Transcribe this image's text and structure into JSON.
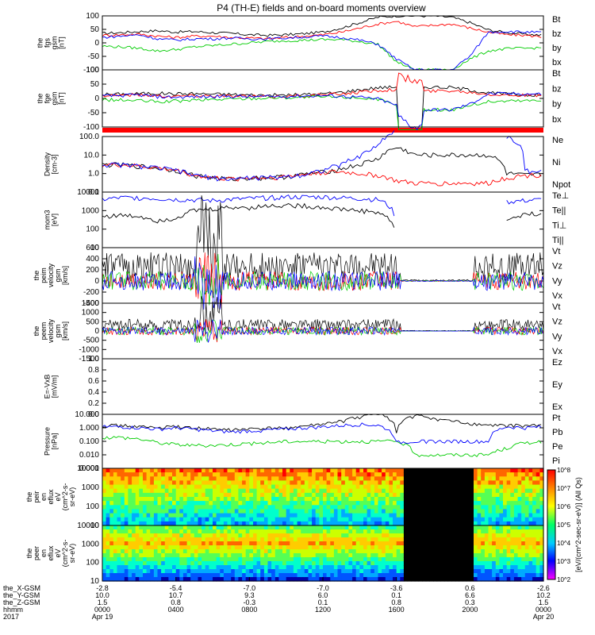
{
  "title": "P4 (TH-E) fields and on-board moments overview",
  "year": "2017",
  "colors": {
    "black": "#000000",
    "red": "#ff0000",
    "green": "#00cc00",
    "blue": "#0000ff",
    "yellow": "#ffff00"
  },
  "panels": [
    {
      "id": "fgs-gsm",
      "ylabel": [
        "the",
        "fgs",
        "gsm",
        "[nT]"
      ],
      "ticks": [
        "100",
        "50",
        "0",
        "-50",
        "-100"
      ],
      "legend": [
        {
          "label": "Bt",
          "color": "black"
        },
        {
          "label": "bz",
          "color": "red"
        },
        {
          "label": "by",
          "color": "green"
        },
        {
          "label": "bx",
          "color": "blue"
        }
      ]
    },
    {
      "id": "fge-gsm",
      "ylabel": [
        "the",
        "fge",
        "gsm",
        "[nT]"
      ],
      "ticks": [
        "100",
        "50",
        "0",
        "-50",
        "-100"
      ],
      "legend": [
        {
          "label": "Bt",
          "color": "black"
        },
        {
          "label": "bz",
          "color": "red"
        },
        {
          "label": "by",
          "color": "green"
        },
        {
          "label": "bx",
          "color": "blue"
        }
      ]
    },
    {
      "id": "density",
      "ylabel": [
        "Density",
        "[cm-3]"
      ],
      "ticks": [
        "100.0",
        "10.0",
        "1.0",
        "0.1"
      ],
      "legend": [
        {
          "label": "Ne",
          "color": "red"
        },
        {
          "label": "Ni",
          "color": "black"
        },
        {
          "label": "Npot",
          "color": "blue"
        }
      ]
    },
    {
      "id": "temperature",
      "ylabel": [
        "mom3",
        "[eV]"
      ],
      "ticks": [
        "10000",
        "1000",
        "100",
        "10"
      ],
      "legend": [
        {
          "label": "Te⊥",
          "color": "red"
        },
        {
          "label": "Te||",
          "color": "black"
        },
        {
          "label": "Ti⊥",
          "color": "blue"
        },
        {
          "label": "Ti||",
          "color": "green"
        }
      ]
    },
    {
      "id": "ion-velocity",
      "ylabel": [
        "the",
        "peim",
        "velocity",
        "gsm",
        "[km/s]"
      ],
      "ticks": [
        "600",
        "400",
        "200",
        "0",
        "-200",
        "-400"
      ],
      "legend": [
        {
          "label": "Vt",
          "color": "black"
        },
        {
          "label": "Vz",
          "color": "red"
        },
        {
          "label": "Vy",
          "color": "green"
        },
        {
          "label": "Vx",
          "color": "blue"
        }
      ]
    },
    {
      "id": "electron-velocity",
      "ylabel": [
        "the",
        "peem",
        "velocity",
        "gsm",
        "[km/s]"
      ],
      "ticks": [
        "1500",
        "1000",
        "500",
        "0",
        "-500",
        "-1000",
        "-1500"
      ],
      "legend": [
        {
          "label": "Vt",
          "color": "black"
        },
        {
          "label": "Vz",
          "color": "red"
        },
        {
          "label": "Vy",
          "color": "green"
        },
        {
          "label": "Vx",
          "color": "blue"
        }
      ]
    },
    {
      "id": "efield",
      "ylabel": [
        "E=-VxB",
        "[mV/m]"
      ],
      "ticks": [
        "1.0",
        "0.8",
        "0.6",
        "0.4",
        "0.2",
        "0.0"
      ],
      "legend": [
        {
          "label": "Ez",
          "color": "red"
        },
        {
          "label": "Ey",
          "color": "green"
        },
        {
          "label": "Ex",
          "color": "blue"
        }
      ]
    },
    {
      "id": "pressure",
      "ylabel": [
        "Pressure",
        "[nPa]"
      ],
      "ticks": [
        "10.000",
        "1.000",
        "0.100",
        "0.010",
        "0.001"
      ],
      "legend": [
        {
          "label": "Pt",
          "color": "black"
        },
        {
          "label": "Pb",
          "color": "red"
        },
        {
          "label": "Pe",
          "color": "green"
        },
        {
          "label": "Pi",
          "color": "blue"
        }
      ]
    },
    {
      "id": "ion-spectrogram",
      "ylabel": [
        "the",
        "peir",
        "en",
        "eflux",
        "eV",
        "(cm^2-s-",
        "sr-eV)"
      ],
      "ticks": [
        "10000",
        "1000",
        "100",
        "10"
      ]
    },
    {
      "id": "electron-spectrogram",
      "ylabel": [
        "the",
        "peer",
        "en",
        "eflux",
        "eV",
        "(cm^2-s-",
        "sr-eV)"
      ],
      "ticks": [
        "10000",
        "1000",
        "100",
        "10"
      ]
    }
  ],
  "colorbar": {
    "label": "[eV/(cm^2-sec-sr-eV)] (All Qs)",
    "ticks": [
      "10^8",
      "10^7",
      "10^6",
      "10^5",
      "10^4",
      "10^3",
      "10^2"
    ]
  },
  "xaxis": {
    "row_labels": [
      "the_X-GSM",
      "the_Y-GSM",
      "the_Z-GSM",
      "hhmm",
      "2017"
    ],
    "ticks": [
      {
        "x": "-2.8",
        "y": "10.0",
        "z": "1.5",
        "hhmm": "0000",
        "date": "Apr 19"
      },
      {
        "x": "-5.4",
        "y": "10.7",
        "z": "0.8",
        "hhmm": "0400",
        "date": ""
      },
      {
        "x": "-7.0",
        "y": "9.3",
        "z": "-0.3",
        "hhmm": "0800",
        "date": ""
      },
      {
        "x": "-7.0",
        "y": "6.0",
        "z": "0.1",
        "hhmm": "1200",
        "date": ""
      },
      {
        "x": "-3.6",
        "y": "0.1",
        "z": "0.8",
        "hhmm": "1600",
        "date": ""
      },
      {
        "x": "0.6",
        "y": "6.6",
        "z": "0.3",
        "hhmm": "2000",
        "date": ""
      },
      {
        "x": "-2.6",
        "y": "10.2",
        "z": "1.5",
        "hhmm": "0000",
        "date": "Apr 20"
      }
    ]
  },
  "chart_data": {
    "type": "line",
    "title": "P4 (TH-E) fields and on-board moments overview",
    "x_hours": [
      0,
      1,
      2,
      3,
      4,
      5,
      6,
      7,
      8,
      9,
      10,
      11,
      12,
      13,
      14,
      15,
      16,
      17,
      18,
      19,
      20,
      21,
      22,
      23,
      24
    ],
    "series": [
      {
        "name": "Bt",
        "panel": "fgs-gsm",
        "values": [
          35,
          38,
          42,
          45,
          40,
          42,
          38,
          35,
          30,
          28,
          30,
          34,
          40,
          55,
          75,
          95,
          100,
          100,
          100,
          95,
          75,
          48,
          38,
          32,
          28
        ]
      },
      {
        "name": "bz",
        "panel": "fgs-gsm",
        "values": [
          28,
          30,
          32,
          25,
          20,
          25,
          25,
          20,
          18,
          15,
          20,
          25,
          30,
          40,
          55,
          70,
          80,
          60,
          65,
          70,
          55,
          40,
          30,
          28,
          22
        ]
      },
      {
        "name": "by",
        "panel": "fgs-gsm",
        "values": [
          -12,
          -15,
          -20,
          -30,
          -25,
          -15,
          -10,
          -5,
          0,
          5,
          8,
          10,
          12,
          12,
          5,
          -5,
          -70,
          -100,
          -100,
          -100,
          -60,
          -30,
          -22,
          -20,
          -18
        ]
      },
      {
        "name": "bx",
        "panel": "fgs-gsm",
        "values": [
          20,
          25,
          30,
          15,
          10,
          15,
          15,
          18,
          15,
          15,
          18,
          22,
          25,
          20,
          10,
          -5,
          -60,
          -100,
          -100,
          -100,
          -50,
          40,
          42,
          40,
          38
        ]
      },
      {
        "name": "Ni",
        "panel": "density",
        "values": [
          3,
          3,
          2.5,
          2,
          1.5,
          0.8,
          0.6,
          0.5,
          0.6,
          0.6,
          0.7,
          0.9,
          1.2,
          1.8,
          3,
          6,
          25,
          10,
          10,
          10,
          10,
          10,
          1,
          0.8,
          0.9
        ]
      },
      {
        "name": "Ne",
        "panel": "density",
        "values": [
          3,
          3,
          2.5,
          2,
          1.5,
          0.8,
          0.6,
          0.5,
          0.6,
          0.6,
          0.7,
          0.9,
          1.2,
          1.2,
          1.0,
          0.8,
          0.4,
          0.3,
          0.3,
          0.3,
          0.3,
          0.3,
          0.6,
          0.8,
          0.9
        ]
      },
      {
        "name": "Npot",
        "panel": "density",
        "values": [
          3,
          3,
          2.5,
          2,
          1.5,
          0.8,
          0.6,
          0.5,
          0.6,
          0.6,
          0.7,
          0.9,
          1.5,
          3,
          8,
          30,
          200,
          null,
          null,
          null,
          null,
          null,
          100,
          1.5,
          1.2
        ]
      },
      {
        "name": "Te||",
        "panel": "temperature",
        "values": [
          500,
          550,
          500,
          300,
          400,
          1000,
          1200,
          1500,
          1500,
          1800,
          2000,
          1800,
          1500,
          1200,
          1000,
          800,
          30,
          null,
          null,
          null,
          null,
          null,
          300,
          600,
          800
        ]
      },
      {
        "name": "Ti⊥",
        "panel": "temperature",
        "values": [
          4000,
          5000,
          5000,
          4500,
          4000,
          3800,
          3500,
          4000,
          4500,
          5000,
          5500,
          5500,
          5500,
          5000,
          4500,
          4000,
          200,
          null,
          null,
          null,
          null,
          null,
          3000,
          3500,
          4000
        ]
      },
      {
        "name": "Pt",
        "panel": "pressure",
        "values": [
          1.5,
          1.5,
          1.2,
          1.0,
          1.2,
          1.0,
          0.8,
          0.7,
          0.8,
          0.9,
          1.0,
          1.3,
          1.8,
          3,
          6,
          12,
          0.5,
          8,
          5,
          3,
          2,
          1.5,
          1.5,
          1.5,
          1.5
        ]
      },
      {
        "name": "Pe",
        "panel": "pressure",
        "values": [
          0.2,
          0.2,
          0.15,
          0.08,
          0.06,
          0.05,
          0.05,
          0.06,
          0.07,
          0.08,
          0.1,
          0.1,
          0.1,
          0.1,
          0.1,
          0.1,
          0.1,
          0.01,
          0.01,
          0.01,
          0.01,
          0.01,
          0.03,
          0.08,
          0.1
        ]
      },
      {
        "name": "Pi",
        "panel": "pressure",
        "values": [
          1.2,
          1.2,
          1.0,
          0.8,
          1.0,
          0.8,
          0.6,
          0.5,
          0.6,
          0.7,
          0.8,
          1.0,
          1.2,
          1.5,
          1.8,
          1.5,
          0.08,
          0.1,
          0.1,
          0.1,
          0.1,
          0.1,
          1.2,
          1.0,
          1.2
        ]
      }
    ]
  }
}
